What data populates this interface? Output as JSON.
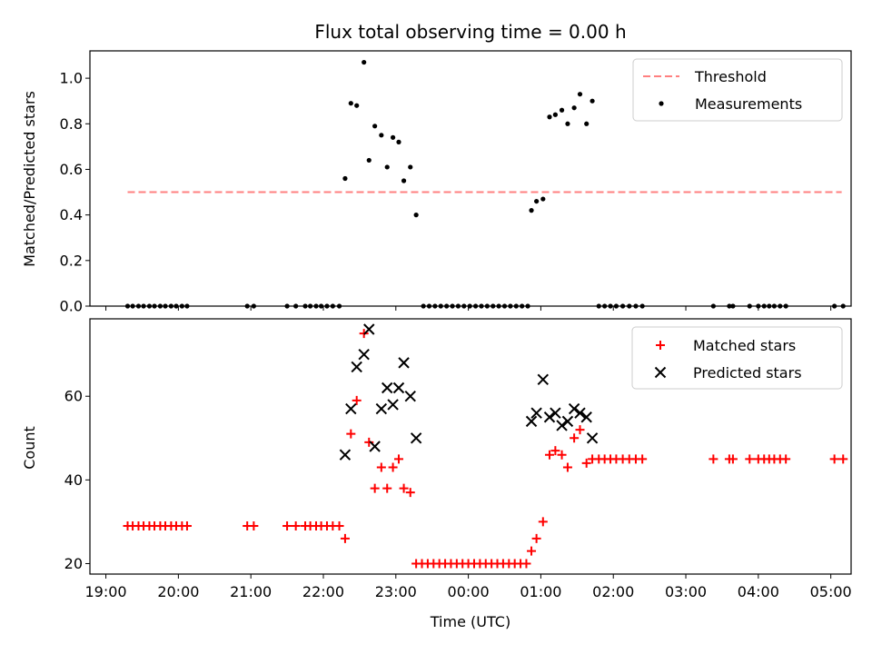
{
  "chart_data": [
    {
      "type": "scatter",
      "title": "Flux total observing time = 0.00 h",
      "xlabel": "",
      "ylabel": "Matched/Predicted stars",
      "ylim": [
        0,
        1.12
      ],
      "yticks": [
        0.0,
        0.2,
        0.4,
        0.6,
        0.8,
        1.0
      ],
      "ytick_labels": [
        "0.0",
        "0.2",
        "0.4",
        "0.6",
        "0.8",
        "1.0"
      ],
      "xlim_hours": [
        18.78,
        29.28
      ],
      "legend": "top-right",
      "threshold": {
        "name": "Threshold",
        "value": 0.5,
        "x_start": 19.3,
        "x_end": 29.15,
        "color": "#ff8080",
        "style": "dashed"
      },
      "series": [
        {
          "name": "Measurements",
          "color": "#000000",
          "marker": "dot",
          "points": [
            [
              19.3,
              0
            ],
            [
              19.37,
              0
            ],
            [
              19.45,
              0
            ],
            [
              19.52,
              0
            ],
            [
              19.6,
              0
            ],
            [
              19.67,
              0
            ],
            [
              19.75,
              0
            ],
            [
              19.82,
              0
            ],
            [
              19.9,
              0
            ],
            [
              19.97,
              0
            ],
            [
              20.05,
              0
            ],
            [
              20.12,
              0
            ],
            [
              20.95,
              0
            ],
            [
              21.04,
              0
            ],
            [
              21.5,
              0
            ],
            [
              21.62,
              0
            ],
            [
              21.75,
              0
            ],
            [
              21.82,
              0
            ],
            [
              21.9,
              0
            ],
            [
              21.97,
              0
            ],
            [
              22.05,
              0
            ],
            [
              22.13,
              0
            ],
            [
              22.22,
              0
            ],
            [
              22.3,
              0.56
            ],
            [
              22.38,
              0.89
            ],
            [
              22.46,
              0.88
            ],
            [
              22.56,
              1.07
            ],
            [
              22.63,
              0.64
            ],
            [
              22.71,
              0.79
            ],
            [
              22.8,
              0.75
            ],
            [
              22.88,
              0.61
            ],
            [
              22.96,
              0.74
            ],
            [
              23.04,
              0.72
            ],
            [
              23.11,
              0.55
            ],
            [
              23.2,
              0.61
            ],
            [
              23.28,
              0.4
            ],
            [
              23.38,
              0
            ],
            [
              23.46,
              0
            ],
            [
              23.54,
              0
            ],
            [
              23.62,
              0
            ],
            [
              23.7,
              0
            ],
            [
              23.78,
              0
            ],
            [
              23.86,
              0
            ],
            [
              23.94,
              0
            ],
            [
              24.02,
              0
            ],
            [
              24.1,
              0
            ],
            [
              24.18,
              0
            ],
            [
              24.26,
              0
            ],
            [
              24.34,
              0
            ],
            [
              24.42,
              0
            ],
            [
              24.5,
              0
            ],
            [
              24.58,
              0
            ],
            [
              24.66,
              0
            ],
            [
              24.74,
              0
            ],
            [
              24.82,
              0
            ],
            [
              24.87,
              0.42
            ],
            [
              24.94,
              0.46
            ],
            [
              25.03,
              0.47
            ],
            [
              25.12,
              0.83
            ],
            [
              25.2,
              0.84
            ],
            [
              25.29,
              0.86
            ],
            [
              25.37,
              0.8
            ],
            [
              25.46,
              0.87
            ],
            [
              25.54,
              0.93
            ],
            [
              25.63,
              0.8
            ],
            [
              25.71,
              0.9
            ],
            [
              25.8,
              0
            ],
            [
              25.88,
              0
            ],
            [
              25.96,
              0
            ],
            [
              26.04,
              0
            ],
            [
              26.13,
              0
            ],
            [
              26.22,
              0
            ],
            [
              26.31,
              0
            ],
            [
              26.4,
              0
            ],
            [
              27.38,
              0
            ],
            [
              27.6,
              0
            ],
            [
              27.65,
              0
            ],
            [
              27.88,
              0
            ],
            [
              28.0,
              0
            ],
            [
              28.08,
              0
            ],
            [
              28.15,
              0
            ],
            [
              28.22,
              0
            ],
            [
              28.3,
              0
            ],
            [
              28.38,
              0
            ],
            [
              29.05,
              0
            ],
            [
              29.17,
              0
            ]
          ]
        }
      ]
    },
    {
      "type": "scatter",
      "title": "",
      "xlabel": "Time (UTC)",
      "ylabel": "Count",
      "ylim": [
        17.5,
        78.5
      ],
      "yticks": [
        20,
        40,
        60
      ],
      "ytick_labels": [
        "20",
        "40",
        "60"
      ],
      "xlim_hours": [
        18.78,
        29.28
      ],
      "xticks_hours": [
        19,
        20,
        21,
        22,
        23,
        24,
        25,
        26,
        27,
        28,
        29
      ],
      "xtick_labels": [
        "19:00",
        "20:00",
        "21:00",
        "22:00",
        "23:00",
        "00:00",
        "01:00",
        "02:00",
        "03:00",
        "04:00",
        "05:00"
      ],
      "legend": "top-right",
      "series": [
        {
          "name": "Matched stars",
          "color": "#ff0000",
          "marker": "plus",
          "points": [
            [
              19.3,
              29
            ],
            [
              19.37,
              29
            ],
            [
              19.45,
              29
            ],
            [
              19.52,
              29
            ],
            [
              19.6,
              29
            ],
            [
              19.67,
              29
            ],
            [
              19.75,
              29
            ],
            [
              19.82,
              29
            ],
            [
              19.9,
              29
            ],
            [
              19.97,
              29
            ],
            [
              20.05,
              29
            ],
            [
              20.12,
              29
            ],
            [
              20.95,
              29
            ],
            [
              21.04,
              29
            ],
            [
              21.5,
              29
            ],
            [
              21.62,
              29
            ],
            [
              21.75,
              29
            ],
            [
              21.82,
              29
            ],
            [
              21.9,
              29
            ],
            [
              21.97,
              29
            ],
            [
              22.05,
              29
            ],
            [
              22.13,
              29
            ],
            [
              22.22,
              29
            ],
            [
              22.3,
              26
            ],
            [
              22.38,
              51
            ],
            [
              22.46,
              59
            ],
            [
              22.56,
              75
            ],
            [
              22.63,
              49
            ],
            [
              22.71,
              38
            ],
            [
              22.8,
              43
            ],
            [
              22.88,
              38
            ],
            [
              22.96,
              43
            ],
            [
              23.04,
              45
            ],
            [
              23.11,
              38
            ],
            [
              23.2,
              37
            ],
            [
              23.28,
              20
            ],
            [
              23.36,
              20
            ],
            [
              23.44,
              20
            ],
            [
              23.52,
              20
            ],
            [
              23.6,
              20
            ],
            [
              23.68,
              20
            ],
            [
              23.76,
              20
            ],
            [
              23.84,
              20
            ],
            [
              23.92,
              20
            ],
            [
              24.0,
              20
            ],
            [
              24.08,
              20
            ],
            [
              24.16,
              20
            ],
            [
              24.24,
              20
            ],
            [
              24.32,
              20
            ],
            [
              24.4,
              20
            ],
            [
              24.48,
              20
            ],
            [
              24.56,
              20
            ],
            [
              24.64,
              20
            ],
            [
              24.72,
              20
            ],
            [
              24.8,
              20
            ],
            [
              24.87,
              23
            ],
            [
              24.94,
              26
            ],
            [
              25.03,
              30
            ],
            [
              25.12,
              46
            ],
            [
              25.2,
              47
            ],
            [
              25.29,
              46
            ],
            [
              25.37,
              43
            ],
            [
              25.46,
              50
            ],
            [
              25.54,
              52
            ],
            [
              25.63,
              44
            ],
            [
              25.71,
              45
            ],
            [
              25.8,
              45
            ],
            [
              25.88,
              45
            ],
            [
              25.96,
              45
            ],
            [
              26.04,
              45
            ],
            [
              26.13,
              45
            ],
            [
              26.22,
              45
            ],
            [
              26.31,
              45
            ],
            [
              26.4,
              45
            ],
            [
              27.38,
              45
            ],
            [
              27.6,
              45
            ],
            [
              27.65,
              45
            ],
            [
              27.88,
              45
            ],
            [
              28.0,
              45
            ],
            [
              28.08,
              45
            ],
            [
              28.15,
              45
            ],
            [
              28.22,
              45
            ],
            [
              28.3,
              45
            ],
            [
              28.38,
              45
            ],
            [
              29.05,
              45
            ],
            [
              29.17,
              45
            ]
          ]
        },
        {
          "name": "Predicted stars",
          "color": "#000000",
          "marker": "x",
          "points": [
            [
              22.3,
              46
            ],
            [
              22.38,
              57
            ],
            [
              22.46,
              67
            ],
            [
              22.56,
              70
            ],
            [
              22.63,
              76
            ],
            [
              22.71,
              48
            ],
            [
              22.8,
              57
            ],
            [
              22.88,
              62
            ],
            [
              22.96,
              58
            ],
            [
              23.04,
              62
            ],
            [
              23.11,
              68
            ],
            [
              23.2,
              60
            ],
            [
              23.28,
              50
            ],
            [
              24.87,
              54
            ],
            [
              24.94,
              56
            ],
            [
              25.03,
              64
            ],
            [
              25.12,
              55
            ],
            [
              25.2,
              56
            ],
            [
              25.29,
              53
            ],
            [
              25.37,
              54
            ],
            [
              25.46,
              57
            ],
            [
              25.54,
              56
            ],
            [
              25.63,
              55
            ],
            [
              25.71,
              50
            ]
          ]
        }
      ]
    }
  ]
}
